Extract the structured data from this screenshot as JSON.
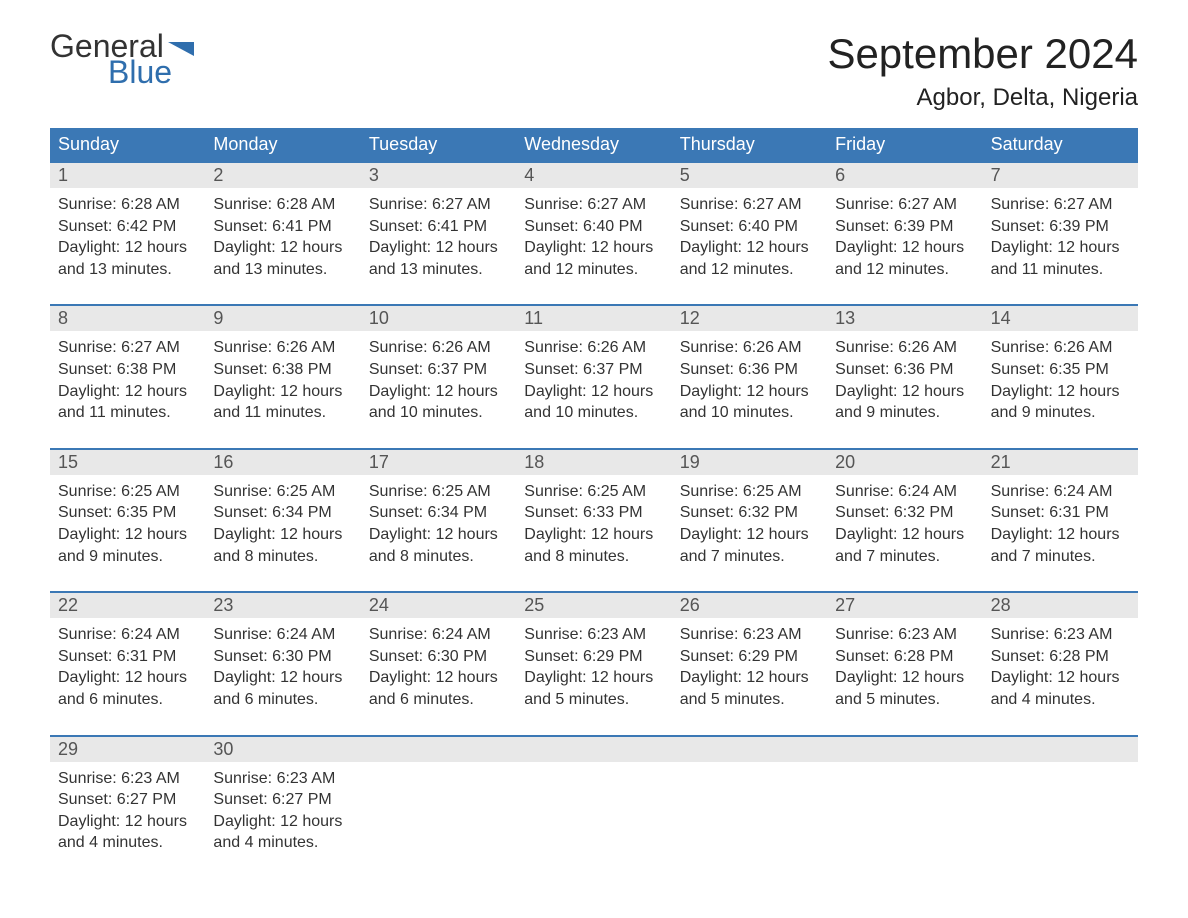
{
  "brand": {
    "general": "General",
    "blue": "Blue"
  },
  "title": "September 2024",
  "location": "Agbor, Delta, Nigeria",
  "colors": {
    "header_bg": "#3b78b5",
    "header_text": "#ffffff",
    "daynum_bg": "#e8e8e8",
    "border": "#3b78b5",
    "logo_blue": "#2f6ead"
  },
  "dow": [
    "Sunday",
    "Monday",
    "Tuesday",
    "Wednesday",
    "Thursday",
    "Friday",
    "Saturday"
  ],
  "weeks": [
    [
      {
        "n": "1",
        "sr": "Sunrise: 6:28 AM",
        "ss": "Sunset: 6:42 PM",
        "d1": "Daylight: 12 hours",
        "d2": "and 13 minutes."
      },
      {
        "n": "2",
        "sr": "Sunrise: 6:28 AM",
        "ss": "Sunset: 6:41 PM",
        "d1": "Daylight: 12 hours",
        "d2": "and 13 minutes."
      },
      {
        "n": "3",
        "sr": "Sunrise: 6:27 AM",
        "ss": "Sunset: 6:41 PM",
        "d1": "Daylight: 12 hours",
        "d2": "and 13 minutes."
      },
      {
        "n": "4",
        "sr": "Sunrise: 6:27 AM",
        "ss": "Sunset: 6:40 PM",
        "d1": "Daylight: 12 hours",
        "d2": "and 12 minutes."
      },
      {
        "n": "5",
        "sr": "Sunrise: 6:27 AM",
        "ss": "Sunset: 6:40 PM",
        "d1": "Daylight: 12 hours",
        "d2": "and 12 minutes."
      },
      {
        "n": "6",
        "sr": "Sunrise: 6:27 AM",
        "ss": "Sunset: 6:39 PM",
        "d1": "Daylight: 12 hours",
        "d2": "and 12 minutes."
      },
      {
        "n": "7",
        "sr": "Sunrise: 6:27 AM",
        "ss": "Sunset: 6:39 PM",
        "d1": "Daylight: 12 hours",
        "d2": "and 11 minutes."
      }
    ],
    [
      {
        "n": "8",
        "sr": "Sunrise: 6:27 AM",
        "ss": "Sunset: 6:38 PM",
        "d1": "Daylight: 12 hours",
        "d2": "and 11 minutes."
      },
      {
        "n": "9",
        "sr": "Sunrise: 6:26 AM",
        "ss": "Sunset: 6:38 PM",
        "d1": "Daylight: 12 hours",
        "d2": "and 11 minutes."
      },
      {
        "n": "10",
        "sr": "Sunrise: 6:26 AM",
        "ss": "Sunset: 6:37 PM",
        "d1": "Daylight: 12 hours",
        "d2": "and 10 minutes."
      },
      {
        "n": "11",
        "sr": "Sunrise: 6:26 AM",
        "ss": "Sunset: 6:37 PM",
        "d1": "Daylight: 12 hours",
        "d2": "and 10 minutes."
      },
      {
        "n": "12",
        "sr": "Sunrise: 6:26 AM",
        "ss": "Sunset: 6:36 PM",
        "d1": "Daylight: 12 hours",
        "d2": "and 10 minutes."
      },
      {
        "n": "13",
        "sr": "Sunrise: 6:26 AM",
        "ss": "Sunset: 6:36 PM",
        "d1": "Daylight: 12 hours",
        "d2": "and 9 minutes."
      },
      {
        "n": "14",
        "sr": "Sunrise: 6:26 AM",
        "ss": "Sunset: 6:35 PM",
        "d1": "Daylight: 12 hours",
        "d2": "and 9 minutes."
      }
    ],
    [
      {
        "n": "15",
        "sr": "Sunrise: 6:25 AM",
        "ss": "Sunset: 6:35 PM",
        "d1": "Daylight: 12 hours",
        "d2": "and 9 minutes."
      },
      {
        "n": "16",
        "sr": "Sunrise: 6:25 AM",
        "ss": "Sunset: 6:34 PM",
        "d1": "Daylight: 12 hours",
        "d2": "and 8 minutes."
      },
      {
        "n": "17",
        "sr": "Sunrise: 6:25 AM",
        "ss": "Sunset: 6:34 PM",
        "d1": "Daylight: 12 hours",
        "d2": "and 8 minutes."
      },
      {
        "n": "18",
        "sr": "Sunrise: 6:25 AM",
        "ss": "Sunset: 6:33 PM",
        "d1": "Daylight: 12 hours",
        "d2": "and 8 minutes."
      },
      {
        "n": "19",
        "sr": "Sunrise: 6:25 AM",
        "ss": "Sunset: 6:32 PM",
        "d1": "Daylight: 12 hours",
        "d2": "and 7 minutes."
      },
      {
        "n": "20",
        "sr": "Sunrise: 6:24 AM",
        "ss": "Sunset: 6:32 PM",
        "d1": "Daylight: 12 hours",
        "d2": "and 7 minutes."
      },
      {
        "n": "21",
        "sr": "Sunrise: 6:24 AM",
        "ss": "Sunset: 6:31 PM",
        "d1": "Daylight: 12 hours",
        "d2": "and 7 minutes."
      }
    ],
    [
      {
        "n": "22",
        "sr": "Sunrise: 6:24 AM",
        "ss": "Sunset: 6:31 PM",
        "d1": "Daylight: 12 hours",
        "d2": "and 6 minutes."
      },
      {
        "n": "23",
        "sr": "Sunrise: 6:24 AM",
        "ss": "Sunset: 6:30 PM",
        "d1": "Daylight: 12 hours",
        "d2": "and 6 minutes."
      },
      {
        "n": "24",
        "sr": "Sunrise: 6:24 AM",
        "ss": "Sunset: 6:30 PM",
        "d1": "Daylight: 12 hours",
        "d2": "and 6 minutes."
      },
      {
        "n": "25",
        "sr": "Sunrise: 6:23 AM",
        "ss": "Sunset: 6:29 PM",
        "d1": "Daylight: 12 hours",
        "d2": "and 5 minutes."
      },
      {
        "n": "26",
        "sr": "Sunrise: 6:23 AM",
        "ss": "Sunset: 6:29 PM",
        "d1": "Daylight: 12 hours",
        "d2": "and 5 minutes."
      },
      {
        "n": "27",
        "sr": "Sunrise: 6:23 AM",
        "ss": "Sunset: 6:28 PM",
        "d1": "Daylight: 12 hours",
        "d2": "and 5 minutes."
      },
      {
        "n": "28",
        "sr": "Sunrise: 6:23 AM",
        "ss": "Sunset: 6:28 PM",
        "d1": "Daylight: 12 hours",
        "d2": "and 4 minutes."
      }
    ],
    [
      {
        "n": "29",
        "sr": "Sunrise: 6:23 AM",
        "ss": "Sunset: 6:27 PM",
        "d1": "Daylight: 12 hours",
        "d2": "and 4 minutes."
      },
      {
        "n": "30",
        "sr": "Sunrise: 6:23 AM",
        "ss": "Sunset: 6:27 PM",
        "d1": "Daylight: 12 hours",
        "d2": "and 4 minutes."
      },
      null,
      null,
      null,
      null,
      null
    ]
  ]
}
